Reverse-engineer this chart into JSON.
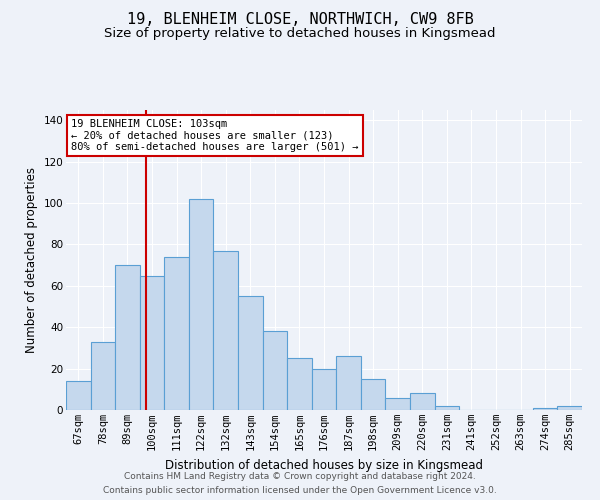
{
  "title": "19, BLENHEIM CLOSE, NORTHWICH, CW9 8FB",
  "subtitle": "Size of property relative to detached houses in Kingsmead",
  "xlabel": "Distribution of detached houses by size in Kingsmead",
  "ylabel": "Number of detached properties",
  "bar_labels": [
    "67sqm",
    "78sqm",
    "89sqm",
    "100sqm",
    "111sqm",
    "122sqm",
    "132sqm",
    "143sqm",
    "154sqm",
    "165sqm",
    "176sqm",
    "187sqm",
    "198sqm",
    "209sqm",
    "220sqm",
    "231sqm",
    "241sqm",
    "252sqm",
    "263sqm",
    "274sqm",
    "285sqm"
  ],
  "bar_heights": [
    14,
    33,
    70,
    65,
    74,
    102,
    77,
    55,
    38,
    25,
    20,
    26,
    15,
    6,
    8,
    2,
    0,
    0,
    0,
    1,
    2
  ],
  "bar_color": "#c5d8ed",
  "bar_edge_color": "#5a9fd4",
  "vline_color": "#cc0000",
  "annotation_line1": "19 BLENHEIM CLOSE: 103sqm",
  "annotation_line2": "← 20% of detached houses are smaller (123)",
  "annotation_line3": "80% of semi-detached houses are larger (501) →",
  "annotation_box_color": "#ffffff",
  "annotation_box_edge": "#cc0000",
  "ylim": [
    0,
    145
  ],
  "yticks": [
    0,
    20,
    40,
    60,
    80,
    100,
    120,
    140
  ],
  "footer1": "Contains HM Land Registry data © Crown copyright and database right 2024.",
  "footer2": "Contains public sector information licensed under the Open Government Licence v3.0.",
  "bg_color": "#eef2f9",
  "grid_color": "#ffffff",
  "title_fontsize": 11,
  "subtitle_fontsize": 9.5,
  "axis_label_fontsize": 8.5,
  "tick_fontsize": 7.5,
  "annotation_fontsize": 7.5,
  "footer_fontsize": 6.5
}
